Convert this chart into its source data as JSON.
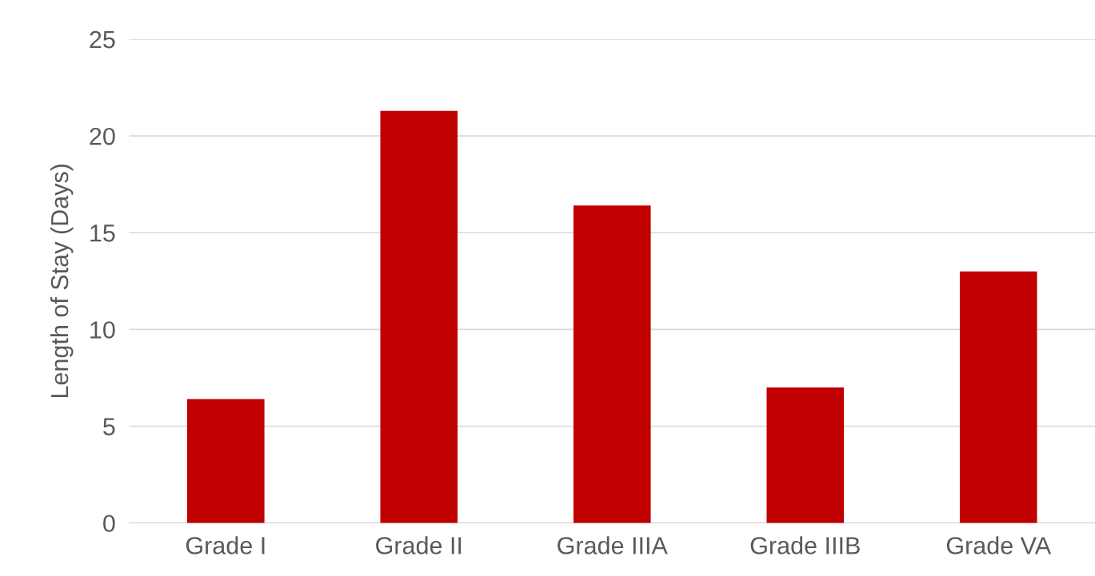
{
  "chart_data": {
    "type": "bar",
    "ylabel": "Length of Stay (Days)",
    "categories": [
      "Grade I",
      "Grade II",
      "Grade IIIA",
      "Grade IIIB",
      "Grade VA"
    ],
    "values": [
      6.4,
      21.3,
      16.4,
      7.0,
      13.0
    ],
    "color": "#c00000",
    "ylim": [
      0,
      25
    ],
    "yticks": [
      0,
      5,
      10,
      15,
      20,
      25
    ],
    "grid": "y"
  }
}
